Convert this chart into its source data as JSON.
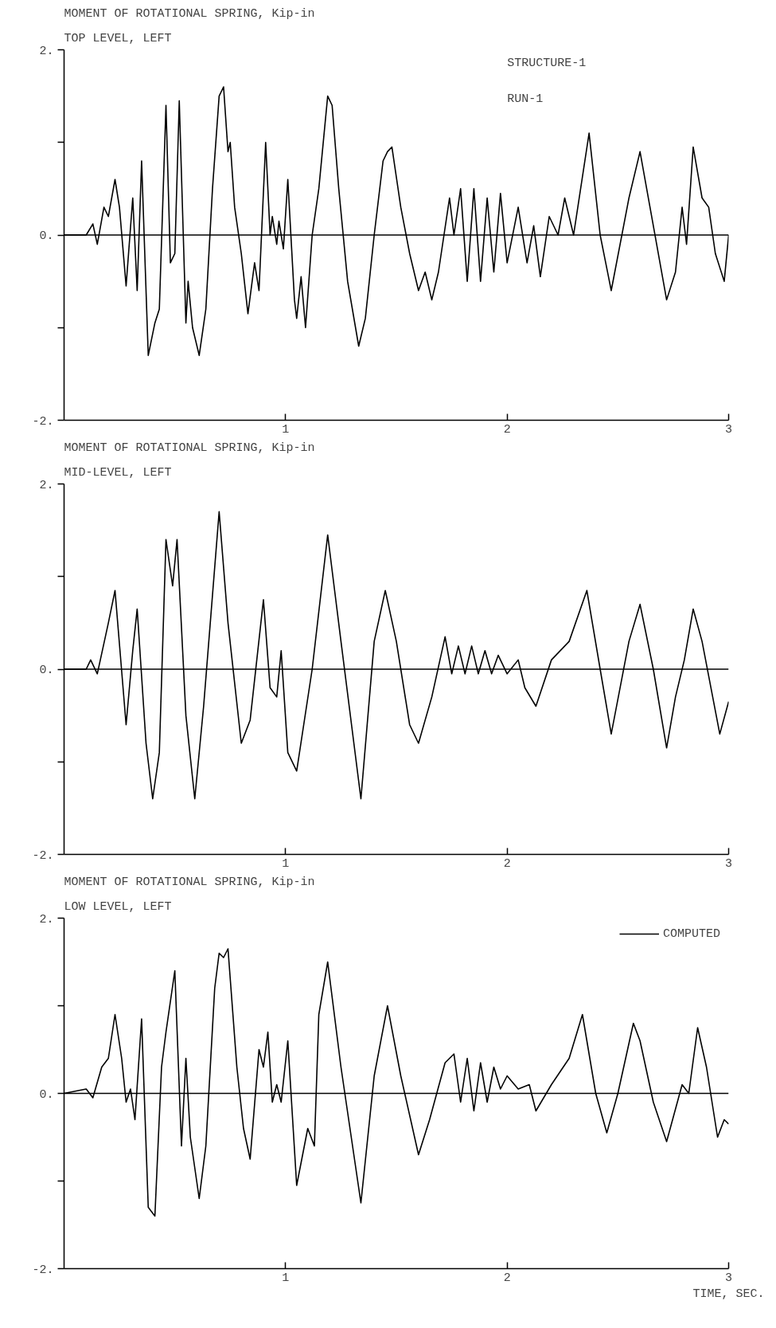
{
  "chart_data": [
    {
      "type": "line",
      "title": "MOMENT OF ROTATIONAL SPRING, Kip-in",
      "subtitle": "TOP LEVEL, LEFT",
      "annotations": [
        "STRUCTURE-1",
        "RUN-1"
      ],
      "xlim": [
        0,
        3
      ],
      "ylim": [
        -2,
        2
      ],
      "xticks": [
        1,
        2,
        3
      ],
      "yticks": [
        {
          "value": -2,
          "label": "-2."
        },
        {
          "value": -1,
          "label": null
        },
        {
          "value": 0,
          "label": "0."
        },
        {
          "value": 1,
          "label": null
        },
        {
          "value": 2,
          "label": "2."
        }
      ],
      "grid": false,
      "legend": false,
      "ref_lines": [
        {
          "axis": "y",
          "value": 0,
          "label": null
        }
      ],
      "series": [
        {
          "color": "#000000",
          "x": [
            0,
            0.1,
            0.13,
            0.15,
            0.18,
            0.2,
            0.23,
            0.25,
            0.28,
            0.31,
            0.33,
            0.35,
            0.38,
            0.41,
            0.43,
            0.46,
            0.48,
            0.5,
            0.52,
            0.55,
            0.56,
            0.58,
            0.61,
            0.64,
            0.67,
            0.7,
            0.72,
            0.74,
            0.75,
            0.77,
            0.8,
            0.83,
            0.86,
            0.88,
            0.91,
            0.93,
            0.94,
            0.96,
            0.97,
            0.99,
            1.01,
            1.04,
            1.05,
            1.07,
            1.09,
            1.12,
            1.15,
            1.19,
            1.21,
            1.24,
            1.28,
            1.33,
            1.36,
            1.4,
            1.44,
            1.46,
            1.48,
            1.52,
            1.56,
            1.6,
            1.63,
            1.66,
            1.69,
            1.74,
            1.76,
            1.79,
            1.82,
            1.85,
            1.88,
            1.91,
            1.94,
            1.97,
            2.0,
            2.05,
            2.09,
            2.12,
            2.15,
            2.19,
            2.23,
            2.26,
            2.3,
            2.37,
            2.42,
            2.47,
            2.55,
            2.6,
            2.66,
            2.72,
            2.76,
            2.79,
            2.81,
            2.84,
            2.88,
            2.91,
            2.94,
            2.98,
            3.0
          ],
          "values": [
            0,
            0,
            0.12,
            -0.1,
            0.3,
            0.2,
            0.6,
            0.3,
            -0.55,
            0.4,
            -0.6,
            0.8,
            -1.3,
            -0.95,
            -0.8,
            1.4,
            -0.3,
            -0.2,
            1.45,
            -0.95,
            -0.5,
            -1.0,
            -1.3,
            -0.8,
            0.5,
            1.5,
            1.6,
            0.9,
            1.0,
            0.3,
            -0.2,
            -0.85,
            -0.3,
            -0.6,
            1.0,
            0.0,
            0.2,
            -0.1,
            0.15,
            -0.15,
            0.6,
            -0.7,
            -0.9,
            -0.45,
            -1.0,
            0.0,
            0.5,
            1.5,
            1.4,
            0.5,
            -0.5,
            -1.2,
            -0.9,
            0.0,
            0.8,
            0.9,
            0.95,
            0.3,
            -0.2,
            -0.6,
            -0.4,
            -0.7,
            -0.4,
            0.4,
            0.0,
            0.5,
            -0.5,
            0.5,
            -0.5,
            0.4,
            -0.4,
            0.45,
            -0.3,
            0.3,
            -0.3,
            0.1,
            -0.45,
            0.2,
            0.0,
            0.4,
            0.0,
            1.1,
            0.0,
            -0.6,
            0.4,
            0.9,
            0.1,
            -0.7,
            -0.4,
            0.3,
            -0.1,
            0.95,
            0.4,
            0.3,
            -0.2,
            -0.5,
            0.0
          ]
        }
      ]
    },
    {
      "type": "line",
      "title": "MOMENT OF ROTATIONAL SPRING, Kip-in",
      "subtitle": "MID-LEVEL, LEFT",
      "xlim": [
        0,
        3
      ],
      "ylim": [
        -2,
        2
      ],
      "xticks": [
        1,
        2,
        3
      ],
      "yticks": [
        {
          "value": -2,
          "label": "-2."
        },
        {
          "value": -1,
          "label": null
        },
        {
          "value": 0,
          "label": "0."
        },
        {
          "value": 1,
          "label": null
        },
        {
          "value": 2,
          "label": "2."
        }
      ],
      "grid": false,
      "legend": false,
      "ref_lines": [
        {
          "axis": "y",
          "value": 0,
          "label": null
        }
      ],
      "series": [
        {
          "color": "#000000",
          "x": [
            0,
            0.1,
            0.12,
            0.15,
            0.2,
            0.23,
            0.28,
            0.31,
            0.33,
            0.37,
            0.4,
            0.43,
            0.46,
            0.49,
            0.51,
            0.55,
            0.59,
            0.63,
            0.66,
            0.7,
            0.74,
            0.8,
            0.84,
            0.9,
            0.93,
            0.96,
            0.98,
            1.01,
            1.05,
            1.12,
            1.19,
            1.25,
            1.34,
            1.4,
            1.45,
            1.5,
            1.56,
            1.6,
            1.66,
            1.72,
            1.75,
            1.78,
            1.81,
            1.84,
            1.87,
            1.9,
            1.93,
            1.96,
            2.0,
            2.05,
            2.08,
            2.13,
            2.2,
            2.28,
            2.36,
            2.42,
            2.47,
            2.55,
            2.6,
            2.66,
            2.72,
            2.76,
            2.8,
            2.84,
            2.88,
            2.96,
            3.0
          ],
          "values": [
            0,
            0,
            0.1,
            -0.05,
            0.5,
            0.85,
            -0.6,
            0.2,
            0.65,
            -0.8,
            -1.4,
            -0.9,
            1.4,
            0.9,
            1.4,
            -0.5,
            -1.4,
            -0.4,
            0.5,
            1.7,
            0.5,
            -0.8,
            -0.55,
            0.75,
            -0.2,
            -0.3,
            0.2,
            -0.9,
            -1.1,
            0.0,
            1.45,
            0.3,
            -1.4,
            0.3,
            0.85,
            0.3,
            -0.6,
            -0.8,
            -0.3,
            0.35,
            -0.05,
            0.25,
            -0.05,
            0.25,
            -0.05,
            0.2,
            -0.05,
            0.15,
            -0.05,
            0.1,
            -0.2,
            -0.4,
            0.1,
            0.3,
            0.85,
            0.0,
            -0.7,
            0.3,
            0.7,
            0.0,
            -0.85,
            -0.3,
            0.1,
            0.65,
            0.3,
            -0.7,
            -0.35
          ]
        }
      ]
    },
    {
      "type": "line",
      "title": "MOMENT OF ROTATIONAL SPRING, Kip-in",
      "subtitle": "LOW LEVEL, LEFT",
      "xlabel": "TIME, SEC.",
      "xlim": [
        0,
        3
      ],
      "ylim": [
        -2,
        2
      ],
      "xticks": [
        1,
        2,
        3
      ],
      "yticks": [
        {
          "value": -2,
          "label": "-2."
        },
        {
          "value": -1,
          "label": null
        },
        {
          "value": 0,
          "label": "0."
        },
        {
          "value": 1,
          "label": null
        },
        {
          "value": 2,
          "label": "2."
        }
      ],
      "grid": false,
      "legend": "top right",
      "ref_lines": [
        {
          "axis": "y",
          "value": 0,
          "label": null
        }
      ],
      "series": [
        {
          "name": "COMPUTED",
          "color": "#000000",
          "x": [
            0,
            0.1,
            0.13,
            0.17,
            0.2,
            0.23,
            0.26,
            0.28,
            0.3,
            0.32,
            0.35,
            0.38,
            0.41,
            0.44,
            0.46,
            0.5,
            0.53,
            0.55,
            0.57,
            0.61,
            0.64,
            0.68,
            0.7,
            0.72,
            0.74,
            0.78,
            0.81,
            0.84,
            0.88,
            0.9,
            0.92,
            0.94,
            0.96,
            0.98,
            1.01,
            1.05,
            1.1,
            1.13,
            1.15,
            1.19,
            1.25,
            1.34,
            1.4,
            1.46,
            1.52,
            1.6,
            1.65,
            1.72,
            1.76,
            1.79,
            1.82,
            1.85,
            1.88,
            1.91,
            1.94,
            1.97,
            2.0,
            2.05,
            2.1,
            2.13,
            2.2,
            2.24,
            2.28,
            2.34,
            2.4,
            2.45,
            2.5,
            2.57,
            2.6,
            2.66,
            2.72,
            2.79,
            2.82,
            2.86,
            2.9,
            2.95,
            2.98,
            3.0
          ],
          "values": [
            0,
            0.05,
            -0.05,
            0.3,
            0.4,
            0.9,
            0.4,
            -0.1,
            0.05,
            -0.3,
            0.85,
            -1.3,
            -1.4,
            0.3,
            0.7,
            1.4,
            -0.6,
            0.4,
            -0.5,
            -1.2,
            -0.6,
            1.2,
            1.6,
            1.55,
            1.65,
            0.3,
            -0.4,
            -0.75,
            0.5,
            0.3,
            0.7,
            -0.1,
            0.1,
            -0.1,
            0.6,
            -1.05,
            -0.4,
            -0.6,
            0.9,
            1.5,
            0.3,
            -1.25,
            0.2,
            1.0,
            0.2,
            -0.7,
            -0.3,
            0.35,
            0.45,
            -0.1,
            0.4,
            -0.2,
            0.35,
            -0.1,
            0.3,
            0.05,
            0.2,
            0.05,
            0.1,
            -0.2,
            0.1,
            0.25,
            0.4,
            0.9,
            0.0,
            -0.45,
            0.0,
            0.8,
            0.6,
            -0.1,
            -0.55,
            0.1,
            0.0,
            0.75,
            0.3,
            -0.5,
            -0.3,
            -0.35
          ]
        }
      ]
    }
  ]
}
